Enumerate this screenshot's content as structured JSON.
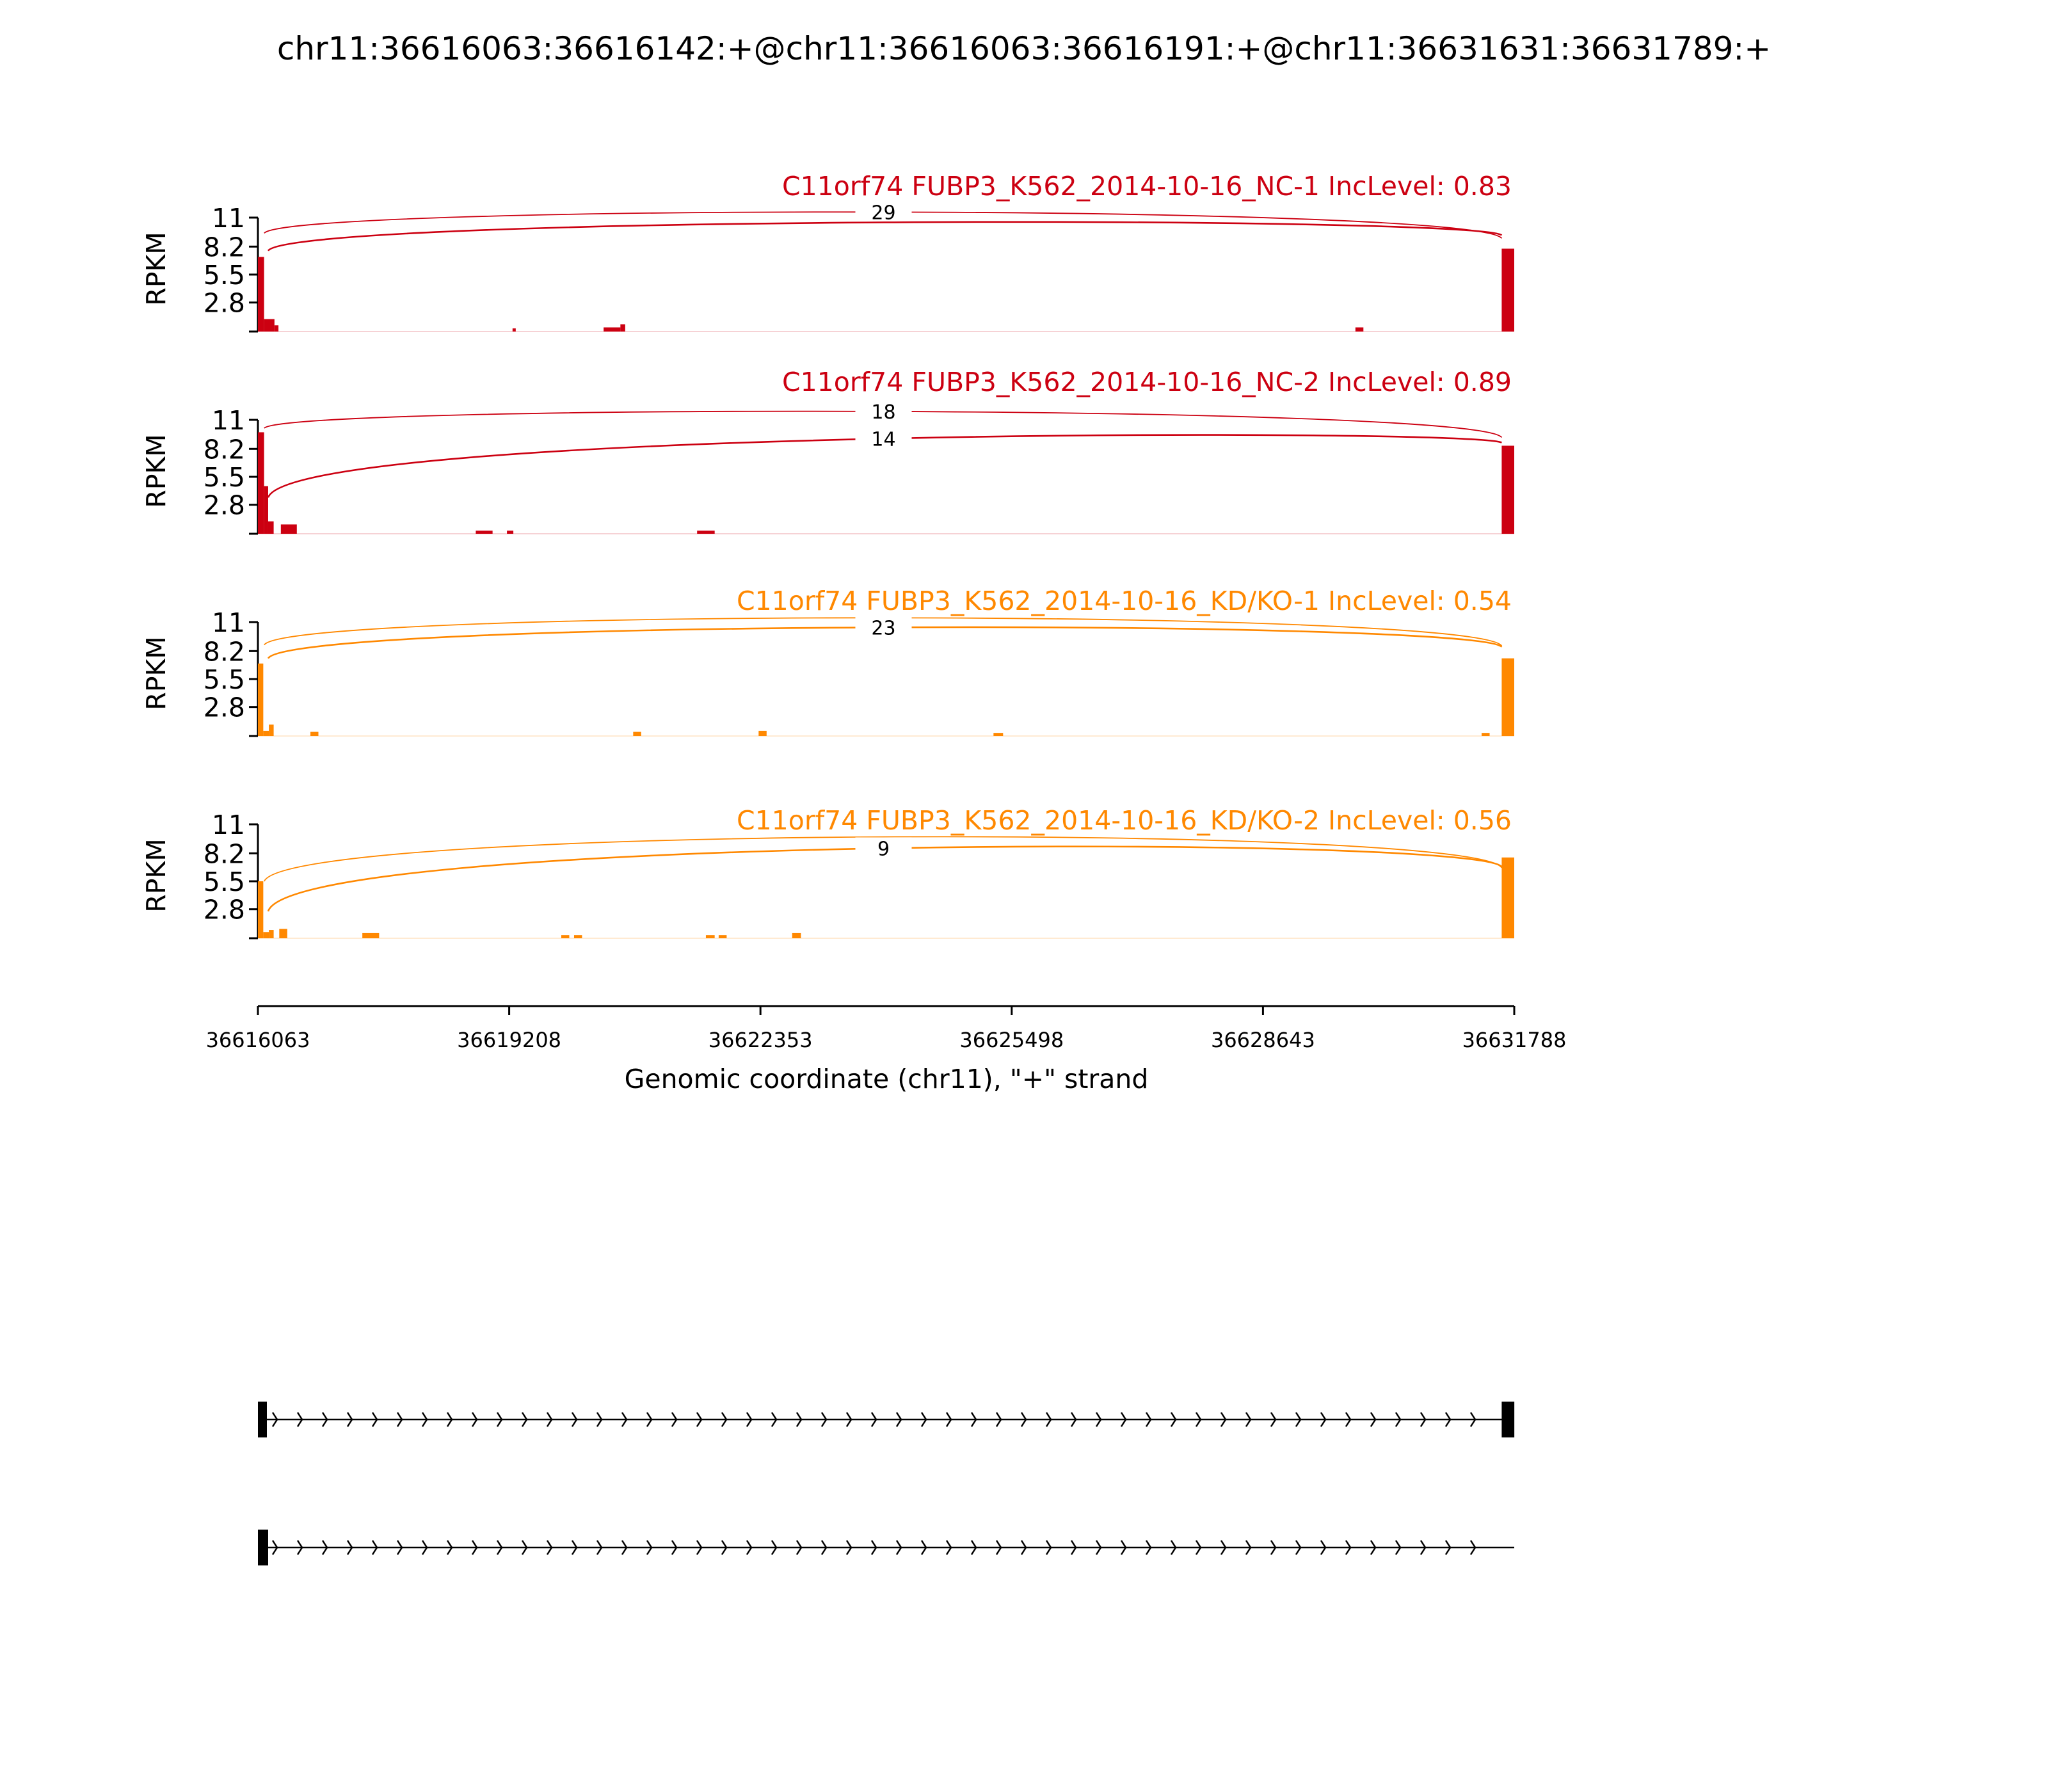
{
  "title": "chr11:36616063:36616142:+@chr11:36616063:36616191:+@chr11:36631631:36631789:+",
  "colors": {
    "nc": "#cc0011",
    "kd": "#ff8800",
    "axis": "#000000",
    "gene": "#000000"
  },
  "chart_data": {
    "type": "area",
    "genomic_range": [
      36616063,
      36631788
    ],
    "x_ticks": [
      "36616063",
      "36619208",
      "36622353",
      "36625498",
      "36628643",
      "36631788"
    ],
    "xlabel": "Genomic coordinate (chr11), \"+\" strand",
    "ylabel": "RPKM",
    "y_ticks": [
      "11",
      "8.2",
      "5.5",
      "2.8"
    ],
    "ylim": [
      0,
      11
    ],
    "panels": [
      {
        "title": "C11orf74 FUBP3_K562_2014-10-16_NC-1 IncLevel: 0.83",
        "group": "nc",
        "coverage": [
          {
            "start": 36616063,
            "end": 36616140,
            "value": 7.2
          },
          {
            "start": 36616140,
            "end": 36616270,
            "value": 1.2
          },
          {
            "start": 36616270,
            "end": 36616320,
            "value": 0.6
          },
          {
            "start": 36619250,
            "end": 36619290,
            "value": 0.3
          },
          {
            "start": 36620390,
            "end": 36620600,
            "value": 0.4
          },
          {
            "start": 36620600,
            "end": 36620660,
            "value": 0.7
          },
          {
            "start": 36629800,
            "end": 36629900,
            "value": 0.4
          },
          {
            "start": 36631631,
            "end": 36631788,
            "value": 8.0
          }
        ],
        "junctions": [
          {
            "start": 36616142,
            "end": 36631631,
            "count": "29",
            "y_start": 9.5,
            "y_end": 9.0,
            "peak": 12.3
          },
          {
            "start": 36616191,
            "end": 36631631,
            "count": "",
            "y_start": 7.8,
            "y_end": 9.3,
            "peak": 11.2
          }
        ]
      },
      {
        "title": "C11orf74 FUBP3_K562_2014-10-16_NC-2 IncLevel: 0.89",
        "group": "nc",
        "coverage": [
          {
            "start": 36616063,
            "end": 36616140,
            "value": 9.8
          },
          {
            "start": 36616140,
            "end": 36616191,
            "value": 4.6
          },
          {
            "start": 36616191,
            "end": 36616260,
            "value": 1.2
          },
          {
            "start": 36616350,
            "end": 36616550,
            "value": 0.9
          },
          {
            "start": 36618790,
            "end": 36619000,
            "value": 0.3
          },
          {
            "start": 36619180,
            "end": 36619260,
            "value": 0.3
          },
          {
            "start": 36621560,
            "end": 36621780,
            "value": 0.3
          },
          {
            "start": 36631631,
            "end": 36631788,
            "value": 8.5
          }
        ],
        "junctions": [
          {
            "start": 36616142,
            "end": 36631631,
            "count": "18",
            "y_start": 10.2,
            "y_end": 9.3,
            "peak": 12.5
          },
          {
            "start": 36616191,
            "end": 36631631,
            "count": "14",
            "y_start": 3.5,
            "y_end": 8.8,
            "peak": 10.2
          }
        ]
      },
      {
        "title": "C11orf74 FUBP3_K562_2014-10-16_KD/KO-1 IncLevel: 0.54",
        "group": "kd",
        "coverage": [
          {
            "start": 36616063,
            "end": 36616130,
            "value": 7.0
          },
          {
            "start": 36616130,
            "end": 36616200,
            "value": 0.5
          },
          {
            "start": 36616200,
            "end": 36616260,
            "value": 1.1
          },
          {
            "start": 36616720,
            "end": 36616820,
            "value": 0.4
          },
          {
            "start": 36620760,
            "end": 36620860,
            "value": 0.4
          },
          {
            "start": 36622330,
            "end": 36622430,
            "value": 0.5
          },
          {
            "start": 36625270,
            "end": 36625390,
            "value": 0.3
          },
          {
            "start": 36631380,
            "end": 36631480,
            "value": 0.3
          },
          {
            "start": 36631631,
            "end": 36631788,
            "value": 7.5
          }
        ],
        "junctions": [
          {
            "start": 36616142,
            "end": 36631631,
            "count": "",
            "y_start": 8.8,
            "y_end": 8.7,
            "peak": 12.3
          },
          {
            "start": 36616191,
            "end": 36631631,
            "count": "23",
            "y_start": 7.5,
            "y_end": 8.6,
            "peak": 11.3
          }
        ]
      },
      {
        "title": "C11orf74 FUBP3_K562_2014-10-16_KD/KO-2 IncLevel: 0.56",
        "group": "kd",
        "coverage": [
          {
            "start": 36616063,
            "end": 36616130,
            "value": 5.5
          },
          {
            "start": 36616130,
            "end": 36616200,
            "value": 0.6
          },
          {
            "start": 36616200,
            "end": 36616260,
            "value": 0.8
          },
          {
            "start": 36616330,
            "end": 36616430,
            "value": 0.9
          },
          {
            "start": 36617370,
            "end": 36617580,
            "value": 0.5
          },
          {
            "start": 36619860,
            "end": 36619960,
            "value": 0.3
          },
          {
            "start": 36620020,
            "end": 36620120,
            "value": 0.3
          },
          {
            "start": 36621670,
            "end": 36621780,
            "value": 0.3
          },
          {
            "start": 36621830,
            "end": 36621930,
            "value": 0.3
          },
          {
            "start": 36622750,
            "end": 36622860,
            "value": 0.5
          },
          {
            "start": 36631631,
            "end": 36631788,
            "value": 7.8
          }
        ],
        "junctions": [
          {
            "start": 36616142,
            "end": 36631631,
            "count": "",
            "y_start": 5.5,
            "y_end": 6.8,
            "peak": 11.0
          },
          {
            "start": 36616191,
            "end": 36631631,
            "count": "9",
            "y_start": 2.6,
            "y_end": 6.9,
            "peak": 10.0
          }
        ]
      }
    ],
    "transcripts": [
      {
        "exons": [
          [
            36616063,
            36616142
          ],
          [
            36631631,
            36631789
          ]
        ]
      },
      {
        "exons": [
          [
            36616063,
            36616191
          ]
        ]
      }
    ]
  }
}
